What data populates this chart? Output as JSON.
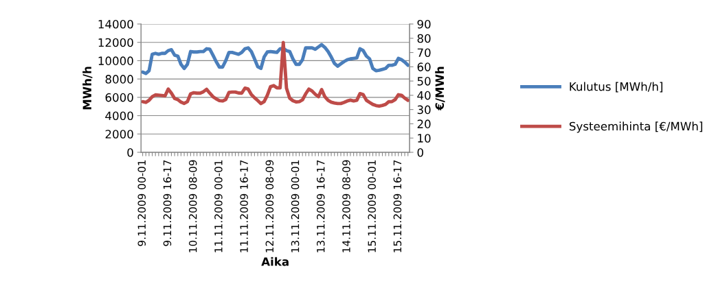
{
  "chart_data": {
    "type": "line",
    "xlabel": "Aika",
    "ylabel": "MWh/h",
    "y2label": "€/MWh",
    "categories": [
      "9.11.2009 00-01",
      null,
      null,
      null,
      null,
      null,
      null,
      null,
      "9.11.2009 16-17",
      null,
      null,
      null,
      null,
      null,
      null,
      null,
      "10.11.2009 08-09",
      null,
      null,
      null,
      null,
      null,
      null,
      null,
      "11.11.2009 00-01",
      null,
      null,
      null,
      null,
      null,
      null,
      null,
      "11.11.2009 16-17",
      null,
      null,
      null,
      null,
      null,
      null,
      null,
      "12.11.2009 08-09",
      null,
      null,
      null,
      null,
      null,
      null,
      null,
      "13.11.2009 00-01",
      null,
      null,
      null,
      null,
      null,
      null,
      null,
      "13.11.2009 16-17",
      null,
      null,
      null,
      null,
      null,
      null,
      null,
      "14.11.2009 08-09",
      null,
      null,
      null,
      null,
      null,
      null,
      null,
      "15.11.2009 00-01",
      null,
      null,
      null,
      null,
      null,
      null,
      null,
      "15.11.2009 16-17",
      null,
      null,
      null
    ],
    "series": [
      {
        "name": "Kulutus [MWh/h]",
        "color": "#4a7ebb",
        "values": [
          8750,
          8600,
          8900,
          10700,
          10800,
          10700,
          10800,
          10800,
          11100,
          11200,
          10600,
          10500,
          9600,
          9150,
          9600,
          11000,
          10950,
          10950,
          11000,
          11000,
          11300,
          11250,
          10600,
          9900,
          9300,
          9300,
          10000,
          10900,
          10900,
          10800,
          10700,
          10900,
          11300,
          11400,
          11000,
          10200,
          9350,
          9150,
          10400,
          10950,
          11000,
          10950,
          10900,
          11300,
          11350,
          11100,
          11000,
          10200,
          9600,
          9600,
          10100,
          11400,
          11400,
          11400,
          11250,
          11500,
          11750,
          11450,
          11000,
          10400,
          9700,
          9400,
          9650,
          9900,
          10100,
          10200,
          10250,
          10300,
          11300,
          11100,
          10500,
          10200,
          9150,
          8900,
          8950,
          9050,
          9150,
          9500,
          9500,
          9600,
          10250,
          10100,
          9850,
          9500
        ]
      },
      {
        "name": "Systeemihinta [€/MWh]",
        "color": "#be4b48",
        "axis": "y2",
        "values": [
          35.5,
          35,
          36.5,
          39,
          40.3,
          40.1,
          39.9,
          39.6,
          44.4,
          41.5,
          37.8,
          37,
          35.2,
          34.3,
          35.5,
          41,
          41.8,
          41.5,
          41.5,
          42.5,
          44.2,
          41.5,
          39,
          37.5,
          36.3,
          36,
          37,
          42,
          42.3,
          42.3,
          41.6,
          41.5,
          45,
          44.4,
          40.5,
          38.3,
          36.3,
          34.2,
          35.5,
          40,
          46,
          46.8,
          45.2,
          45.2,
          77,
          45,
          38,
          36.2,
          35.3,
          35.5,
          36.8,
          41,
          44.4,
          43,
          40.7,
          39,
          44,
          39,
          36.5,
          35.2,
          34.6,
          34.2,
          34.2,
          35,
          36,
          36.6,
          36,
          36.5,
          41.2,
          40.5,
          36.5,
          35,
          33.6,
          32.8,
          32.4,
          32.9,
          33.6,
          35.5,
          35.6,
          37,
          40.4,
          40,
          38,
          36.5
        ]
      }
    ],
    "ylim": [
      0,
      14000
    ],
    "yticks": [
      0,
      2000,
      4000,
      6000,
      8000,
      10000,
      12000,
      14000
    ],
    "y2lim": [
      0,
      90
    ],
    "y2ticks": [
      0,
      10,
      20,
      30,
      40,
      50,
      60,
      70,
      80,
      90
    ],
    "grid": "y",
    "legend": "right",
    "marker": "none",
    "line_style": "solid"
  }
}
